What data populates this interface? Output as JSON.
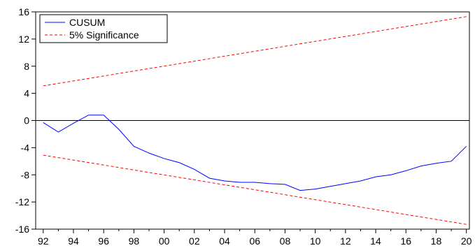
{
  "chart_data": {
    "type": "line",
    "title": "",
    "xlabel": "",
    "ylabel": "",
    "xlim": [
      1991.5,
      2020.2
    ],
    "ylim": [
      -16,
      16
    ],
    "x_tick_labels": [
      "92",
      "94",
      "96",
      "98",
      "00",
      "02",
      "04",
      "06",
      "08",
      "10",
      "12",
      "14",
      "16",
      "18",
      "20"
    ],
    "x_tick_years": [
      1992,
      1994,
      1996,
      1998,
      2000,
      2002,
      2004,
      2006,
      2008,
      2010,
      2012,
      2014,
      2016,
      2018,
      2020
    ],
    "y_ticks": [
      16,
      12,
      8,
      4,
      0,
      -4,
      -8,
      -12,
      -16
    ],
    "y_tick_labels": [
      "16",
      "12",
      "8",
      "4",
      "0",
      "-4",
      "-8",
      "-12",
      "-16"
    ],
    "legend": {
      "position": "top-left",
      "entries": [
        "CUSUM",
        "5% Significance"
      ]
    },
    "grid": false,
    "zero_line": true,
    "series": [
      {
        "name": "CUSUM",
        "color": "#0000ff",
        "style": "solid",
        "x": [
          1992,
          1993,
          1994,
          1995,
          1996,
          1997,
          1998,
          1999,
          2000,
          2001,
          2002,
          2003,
          2004,
          2005,
          2006,
          2007,
          2008,
          2009,
          2010,
          2011,
          2012,
          2013,
          2014,
          2015,
          2016,
          2017,
          2018,
          2019,
          2020
        ],
        "y": [
          -0.3,
          -1.7,
          -0.4,
          0.8,
          0.8,
          -1.3,
          -3.8,
          -4.8,
          -5.6,
          -6.2,
          -7.2,
          -8.5,
          -8.9,
          -9.1,
          -9.1,
          -9.3,
          -9.4,
          -10.3,
          -10.1,
          -9.7,
          -9.3,
          -8.9,
          -8.3,
          -8.0,
          -7.4,
          -6.7,
          -6.3,
          -6.0,
          -3.8
        ]
      },
      {
        "name": "5% Significance",
        "color": "#ff0000",
        "style": "dashed",
        "x": [
          1992,
          2020
        ],
        "y": [
          5.1,
          15.3
        ]
      },
      {
        "name": "5% Significance",
        "color": "#ff0000",
        "style": "dashed",
        "x": [
          1992,
          2020
        ],
        "y": [
          -5.1,
          -15.3
        ]
      }
    ]
  }
}
